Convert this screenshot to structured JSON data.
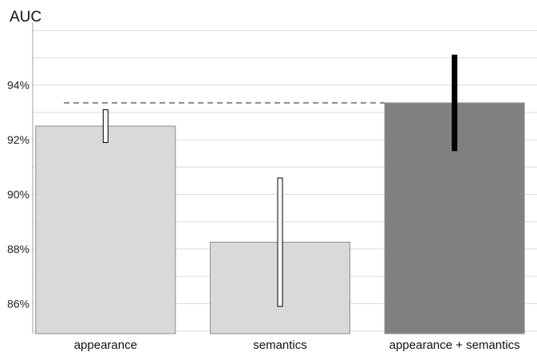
{
  "chart_data": {
    "type": "bar",
    "title": "AUC",
    "xlabel": "",
    "ylabel": "",
    "ylim": [
      84.9,
      96.3
    ],
    "yticks": [
      86,
      88,
      90,
      92,
      94
    ],
    "ytick_labels": [
      "86%",
      "88%",
      "90%",
      "92%",
      "94%"
    ],
    "minor_grid_step": 1,
    "grid": true,
    "categories": [
      "appearance",
      "semantics",
      "appearance + semantics"
    ],
    "values": [
      92.5,
      88.25,
      93.35
    ],
    "error_low": [
      91.9,
      85.9,
      91.6
    ],
    "error_high": [
      93.1,
      90.6,
      95.1
    ],
    "reference_line": 93.35,
    "colors": {
      "bar_light": "#d9d9d9",
      "bar_dark": "#808080",
      "bar_edge": "#8c8c8c",
      "error_light_fill": "#ffffff",
      "error_dark_fill": "#000000",
      "grid": "#dcdcdc",
      "axis": "#a0a0a0",
      "reference_line": "#8c8c8c"
    },
    "bar_styles": [
      "light",
      "light",
      "dark"
    ]
  }
}
